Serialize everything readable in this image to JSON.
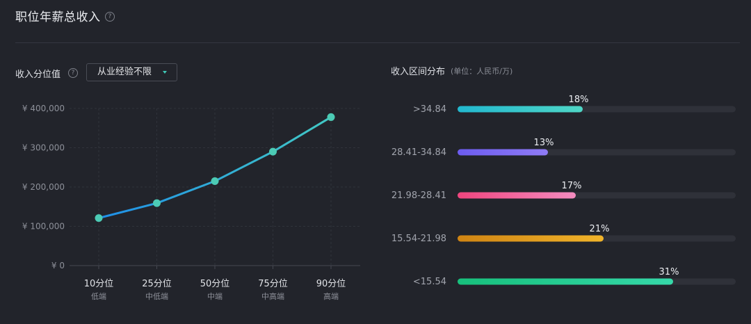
{
  "header": {
    "title": "职位年薪总收入",
    "help_icon": "question-circle-icon"
  },
  "left": {
    "label": "收入分位值",
    "help_icon": "question-circle-icon",
    "dropdown": {
      "selected": "从业经验不限",
      "icon": "caret-down-icon"
    }
  },
  "right": {
    "title": "收入区间分布",
    "unit": "(单位：人民币/万)"
  },
  "colors": {
    "line_start": "#1f8fe8",
    "line_end": "#42c8c4",
    "point": "#4ccbb5",
    "bar_track": "#2f3139",
    "bars": [
      [
        "#22b8cf",
        "#4fd6c6"
      ],
      [
        "#6c5cf0",
        "#8f7bf5"
      ],
      [
        "#f0457e",
        "#f48cc0"
      ],
      [
        "#cf8413",
        "#f1b42a"
      ],
      [
        "#17c07c",
        "#36d8a9"
      ]
    ]
  },
  "chart_data": [
    {
      "type": "line",
      "title": "",
      "xlabel": "",
      "ylabel": "",
      "categories": [
        "10分位",
        "25分位",
        "50分位",
        "75分位",
        "90分位"
      ],
      "category_sublabels": [
        "低端",
        "中低端",
        "中端",
        "中高端",
        "高端"
      ],
      "values": [
        121000,
        159000,
        215000,
        290000,
        378000
      ],
      "y_ticks": [
        "¥ 0",
        "¥ 100,000",
        "¥ 200,000",
        "¥ 300,000",
        "¥ 400,000"
      ],
      "ylim": [
        0,
        400000
      ],
      "grid": true
    },
    {
      "type": "bar",
      "orientation": "horizontal",
      "categories": [
        ">34.84",
        "28.41-34.84",
        "21.98-28.41",
        "15.54-21.98",
        "<15.54"
      ],
      "values": [
        18,
        13,
        17,
        21,
        31
      ],
      "value_labels": [
        "18%",
        "13%",
        "17%",
        "21%",
        "31%"
      ],
      "xlim": [
        0,
        40
      ]
    }
  ]
}
